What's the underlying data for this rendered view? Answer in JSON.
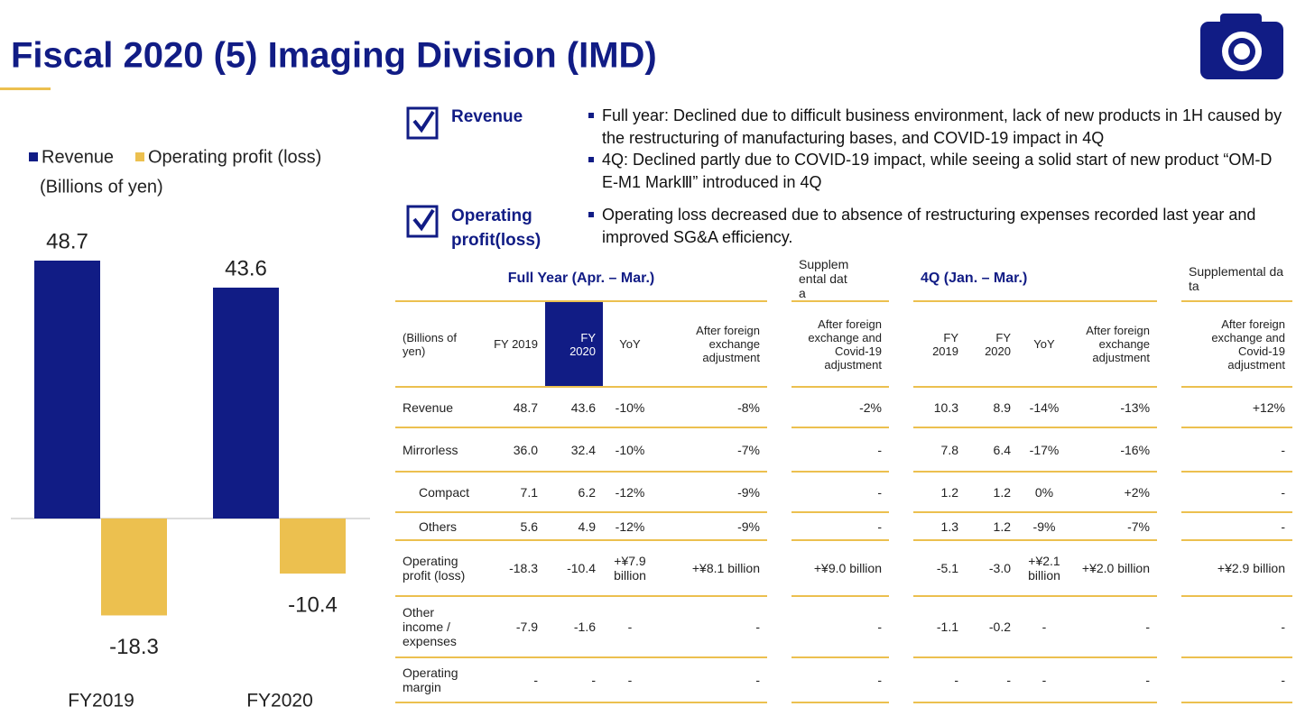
{
  "title": "Fiscal 2020 (5) Imaging Division (IMD)",
  "chart_data": {
    "type": "bar",
    "unit": "(Billions of yen)",
    "categories": [
      "FY2019",
      "FY2020"
    ],
    "series": [
      {
        "name": "Revenue",
        "color": "#111c85",
        "values": [
          48.7,
          43.6
        ]
      },
      {
        "name": "Operating profit (loss)",
        "color": "#ecc04f",
        "values": [
          -18.3,
          -10.4
        ]
      }
    ]
  },
  "sections": [
    {
      "label": "Revenue",
      "bullets": [
        "Full year: Declined due to difficult business environment, lack of new products in 1H caused by the restructuring of manufacturing bases, and COVID-19 impact in 4Q",
        "4Q: Declined partly due to COVID-19 impact, while seeing a solid start of new product “OM-D E-M1 MarkⅢ” introduced in 4Q"
      ]
    },
    {
      "label": "Operating profit(loss)",
      "bullets": [
        "Operating loss decreased due to absence of restructuring expenses recorded last year and improved SG&A efficiency."
      ]
    }
  ],
  "table": {
    "group_headers": [
      "Full Year (Apr. – Mar.)",
      "Supplemental data",
      "4Q (Jan. – Mar.)",
      "Supplemental data"
    ],
    "columns": [
      "(Billions of yen)",
      "FY 2019",
      "FY 2020",
      "YoY",
      "After foreign exchange adjustment",
      "After foreign exchange and Covid-19 adjustment",
      "FY 2019",
      "FY 2020",
      "YoY",
      "After foreign exchange adjustment",
      "After foreign exchange and Covid-19 adjustment"
    ],
    "rows": [
      [
        "Revenue",
        "48.7",
        "43.6",
        "-10%",
        "-8%",
        "-2%",
        "10.3",
        "8.9",
        "-14%",
        "-13%",
        "+12%"
      ],
      [
        "Mirrorless",
        "36.0",
        "32.4",
        "-10%",
        "-7%",
        "-",
        "7.8",
        "6.4",
        "-17%",
        "-16%",
        "-"
      ],
      [
        "Compact",
        "7.1",
        "6.2",
        "-12%",
        "-9%",
        "-",
        "1.2",
        "1.2",
        "0%",
        "+2%",
        "-"
      ],
      [
        "Others",
        "5.6",
        "4.9",
        "-12%",
        "-9%",
        "-",
        "1.3",
        "1.2",
        "-9%",
        "-7%",
        "-"
      ],
      [
        "Operating profit (loss)",
        "-18.3",
        "-10.4",
        "+¥7.9 billion",
        "+¥8.1 billion",
        "+¥9.0 billion",
        "-5.1",
        "-3.0",
        "+¥2.1 billion",
        "+¥2.0 billion",
        "+¥2.9 billion"
      ],
      [
        "Other income / expenses",
        "-7.9",
        "-1.6",
        "-",
        "-",
        "-",
        "-1.1",
        "-0.2",
        "-",
        "-",
        "-"
      ],
      [
        "Operating margin",
        "-",
        "-",
        "-",
        "-",
        "-",
        "-",
        "-",
        "-",
        "-",
        "-"
      ]
    ]
  }
}
